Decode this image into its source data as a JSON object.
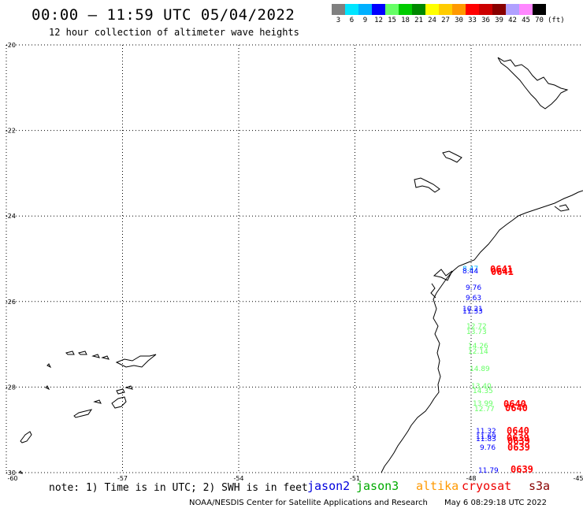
{
  "header": {
    "title": "00:00 – 11:59 UTC 05/04/2022",
    "subtitle": "12 hour collection of altimeter wave heights"
  },
  "colorbar": {
    "swatches": [
      "#808080",
      "#00e5ff",
      "#00b0ff",
      "#0000ff",
      "#66ff66",
      "#00cc00",
      "#008800",
      "#ffff00",
      "#ffcc00",
      "#ff9900",
      "#ff0000",
      "#cc0000",
      "#880000",
      "#b0a0ff",
      "#ff88ff",
      "#000000"
    ],
    "labels": [
      "3",
      "6",
      "9",
      "12",
      "15",
      "18",
      "21",
      "24",
      "27",
      "30",
      "33",
      "36",
      "39",
      "42",
      "45",
      "70"
    ],
    "unit": "(ft)"
  },
  "axes": {
    "lat_labels": [
      "-20",
      "-22",
      "-24",
      "-26",
      "-28",
      "-30"
    ],
    "lon_labels": [
      "-60",
      "-57",
      "-54",
      "-51",
      "-48",
      "-45"
    ]
  },
  "observations": [
    {
      "text": "8.47",
      "color": "#00b0ff"
    },
    {
      "text": "8.44",
      "color": "#0000ff"
    },
    {
      "text": "9.76",
      "color": "#0000ff"
    },
    {
      "text": "9.63",
      "color": "#0000ff"
    },
    {
      "text": "10.21",
      "color": "#0000ff"
    },
    {
      "text": "11.33",
      "color": "#0000ff"
    },
    {
      "text": "12.72",
      "color": "#66ff66"
    },
    {
      "text": "13.73",
      "color": "#66ff66"
    },
    {
      "text": "14.26",
      "color": "#66ff66"
    },
    {
      "text": "12.14",
      "color": "#66ff66"
    },
    {
      "text": "14.89",
      "color": "#66ff66"
    },
    {
      "text": "13.40",
      "color": "#66ff66"
    },
    {
      "text": "14.35",
      "color": "#66ff66"
    },
    {
      "text": "13.99",
      "color": "#66ff66"
    },
    {
      "text": "12.77",
      "color": "#66ff66"
    },
    {
      "text": "11.32",
      "color": "#0000ff"
    },
    {
      "text": "11.69",
      "color": "#0000ff"
    },
    {
      "text": "11.83",
      "color": "#0000ff"
    },
    {
      "text": "9.76",
      "color": "#0000ff"
    },
    {
      "text": "11.79",
      "color": "#0000ff"
    }
  ],
  "passes": [
    {
      "text": "0641",
      "color": "#ff0000"
    },
    {
      "text": "0641",
      "color": "#ff0000"
    },
    {
      "text": "0640",
      "color": "#ff0000"
    },
    {
      "text": "0640",
      "color": "#ff0000"
    },
    {
      "text": "0640",
      "color": "#ff0000"
    },
    {
      "text": "0639",
      "color": "#ff0000"
    },
    {
      "text": "0639",
      "color": "#ff0000"
    },
    {
      "text": "0639",
      "color": "#ff0000"
    },
    {
      "text": "0639",
      "color": "#ff0000"
    }
  ],
  "footer": {
    "note": "note: 1) Time is in UTC; 2) SWH is in feet",
    "credit": "NOAA/NESDIS Center for Satellite Applications and Research",
    "timestamp": "May  6 08:29:18 UTC 2022"
  },
  "satellites": [
    {
      "name": "jason2",
      "color": "#0000dd"
    },
    {
      "name": "jason3",
      "color": "#00aa00"
    },
    {
      "name": "altika",
      "color": "#ff9900"
    },
    {
      "name": "cryosat",
      "color": "#ee0000"
    },
    {
      "name": "s3a",
      "color": "#880000"
    }
  ]
}
